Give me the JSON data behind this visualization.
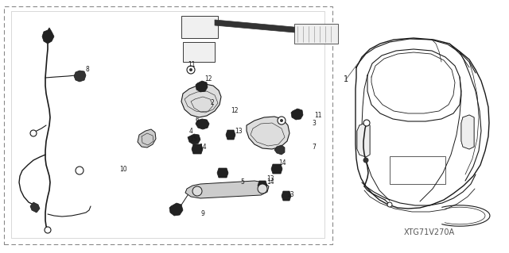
{
  "bg_color": "#ffffff",
  "line_color": "#1a1a1a",
  "fig_width": 6.4,
  "fig_height": 3.19,
  "dpi": 100,
  "watermark_text": "XTG71V270A",
  "watermark_fontsize": 7
}
